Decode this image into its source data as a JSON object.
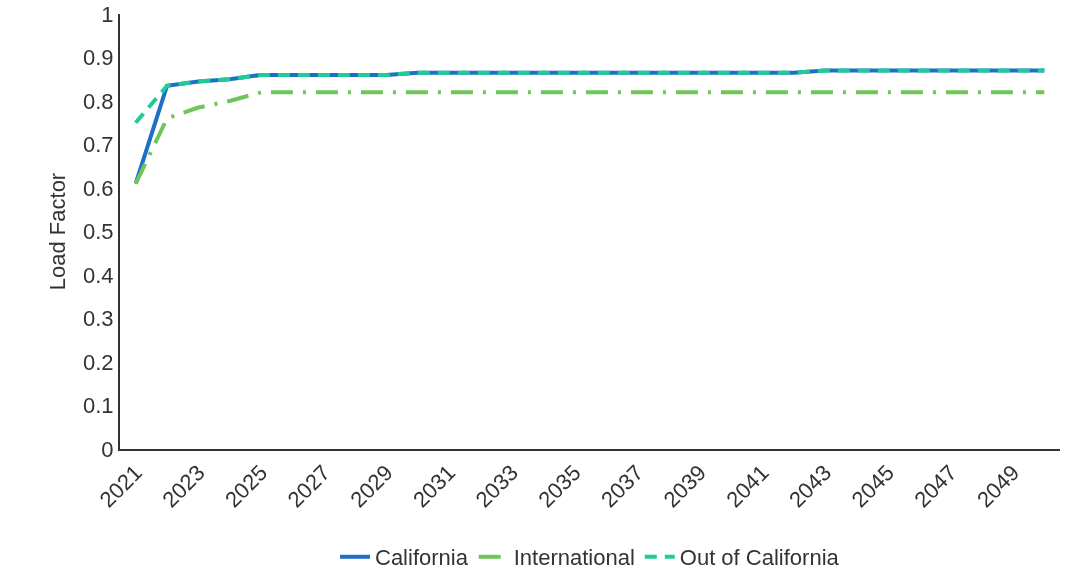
{
  "chart_data": {
    "type": "line",
    "ylabel": "Load Factor",
    "categories": [
      "2021",
      null,
      "2023",
      null,
      "2025",
      null,
      "2027",
      null,
      "2029",
      null,
      "2031",
      null,
      "2033",
      null,
      "2035",
      null,
      "2037",
      null,
      "2039",
      null,
      "2041",
      null,
      "2043",
      null,
      "2045",
      null,
      "2047",
      null,
      "2049",
      null
    ],
    "ylim": [
      0,
      1
    ],
    "yticks": [
      0,
      0.1,
      0.2,
      0.3,
      0.4,
      0.5,
      0.6,
      0.7,
      0.8,
      0.9,
      1
    ],
    "grid": false,
    "legend": "bottom",
    "marker": "none",
    "series": [
      {
        "name": "California",
        "color": "#1f6fc5",
        "line_style": "solid",
        "values": [
          0.61,
          0.835,
          0.845,
          0.85,
          0.86,
          0.86,
          0.86,
          0.86,
          0.86,
          0.865,
          0.865,
          0.865,
          0.865,
          0.865,
          0.865,
          0.865,
          0.865,
          0.865,
          0.865,
          0.865,
          0.865,
          0.865,
          0.87,
          0.87,
          0.87,
          0.87,
          0.87,
          0.87,
          0.87,
          0.87
        ]
      },
      {
        "name": "International",
        "color": "#70c55a",
        "line_style": "dashdot",
        "values": [
          0.61,
          0.76,
          0.785,
          0.8,
          0.82,
          0.82,
          0.82,
          0.82,
          0.82,
          0.82,
          0.82,
          0.82,
          0.82,
          0.82,
          0.82,
          0.82,
          0.82,
          0.82,
          0.82,
          0.82,
          0.82,
          0.82,
          0.82,
          0.82,
          0.82,
          0.82,
          0.82,
          0.82,
          0.82,
          0.82
        ]
      },
      {
        "name": "Out of California",
        "color": "#1fcc98",
        "line_style": "dashed",
        "values": [
          0.75,
          0.835,
          0.845,
          0.85,
          0.86,
          0.86,
          0.86,
          0.86,
          0.86,
          0.865,
          0.865,
          0.865,
          0.865,
          0.865,
          0.865,
          0.865,
          0.865,
          0.865,
          0.865,
          0.865,
          0.865,
          0.865,
          0.87,
          0.87,
          0.87,
          0.87,
          0.87,
          0.87,
          0.87,
          0.87
        ]
      }
    ]
  }
}
